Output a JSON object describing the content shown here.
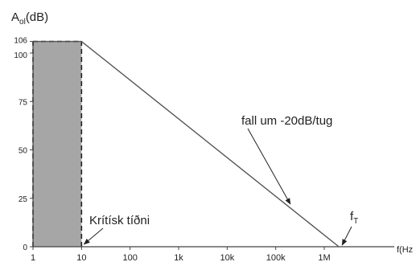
{
  "chart_data": {
    "type": "line",
    "title": "",
    "ylabel": {
      "base": "A",
      "sub": "ol",
      "rest": "(dB)"
    },
    "xlabel": "f(Hz",
    "x_scale": "log",
    "xlim": [
      1,
      3000000
    ],
    "ylim": [
      0,
      106
    ],
    "x_ticks": [
      {
        "value": 1,
        "label": "1"
      },
      {
        "value": 10,
        "label": "10"
      },
      {
        "value": 100,
        "label": "100"
      },
      {
        "value": 1000,
        "label": "1k"
      },
      {
        "value": 10000,
        "label": "10k"
      },
      {
        "value": 100000,
        "label": "100k"
      },
      {
        "value": 1000000,
        "label": "1M"
      }
    ],
    "y_ticks": [
      {
        "value": 0,
        "label": "0"
      },
      {
        "value": 25,
        "label": "25"
      },
      {
        "value": 50,
        "label": "50"
      },
      {
        "value": 75,
        "label": "75"
      },
      {
        "value": 100,
        "label": "100"
      },
      {
        "value": 106,
        "label": "106"
      }
    ],
    "series": [
      {
        "x": [
          1,
          10,
          2000000
        ],
        "y": [
          106,
          106,
          0
        ],
        "color": "#555555"
      }
    ],
    "shaded_region": {
      "x": [
        1,
        10
      ],
      "y": [
        0,
        106
      ],
      "color": "#a6a6a6"
    },
    "dashed_lines": [
      {
        "x": [
          1,
          10
        ],
        "y": [
          106,
          106
        ]
      },
      {
        "x": [
          1,
          1
        ],
        "y": [
          0,
          106
        ]
      },
      {
        "x": [
          10,
          10
        ],
        "y": [
          0,
          106
        ]
      }
    ],
    "annotations": [
      {
        "text": "fall um -20dB/tug",
        "target": [
          200000,
          22
        ]
      },
      {
        "text": "Krítísk tíðni",
        "target": [
          10,
          0
        ]
      },
      {
        "text": "f",
        "sub": "T",
        "target": [
          2000000,
          0
        ]
      }
    ]
  }
}
